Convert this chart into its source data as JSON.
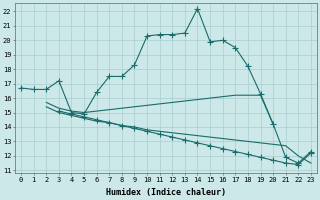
{
  "xlabel": "Humidex (Indice chaleur)",
  "xlim": [
    -0.5,
    23.5
  ],
  "ylim": [
    10.8,
    22.6
  ],
  "yticks": [
    11,
    12,
    13,
    14,
    15,
    16,
    17,
    18,
    19,
    20,
    21,
    22
  ],
  "xticks": [
    0,
    1,
    2,
    3,
    4,
    5,
    6,
    7,
    8,
    9,
    10,
    11,
    12,
    13,
    14,
    15,
    16,
    17,
    18,
    19,
    20,
    21,
    22,
    23
  ],
  "bg_color": "#cce8e8",
  "line_color": "#1a6b6b",
  "grid_color": "#aacece",
  "line1_x": [
    0,
    1,
    2,
    3,
    4,
    5,
    6,
    7,
    8,
    9,
    10,
    11,
    12,
    13,
    14,
    15,
    16,
    17,
    18,
    19,
    20,
    21,
    22,
    23
  ],
  "line1_y": [
    16.7,
    16.6,
    16.6,
    17.2,
    15.0,
    14.9,
    16.4,
    17.5,
    17.5,
    18.3,
    20.3,
    20.4,
    20.4,
    20.5,
    22.2,
    19.9,
    20.0,
    19.5,
    18.2,
    16.3,
    14.2,
    11.9,
    11.5,
    12.3
  ],
  "line2_x": [
    2,
    3,
    4,
    5,
    6,
    7,
    8,
    9,
    10,
    11,
    12,
    13,
    14,
    15,
    16,
    17,
    18,
    19,
    20
  ],
  "line2_y": [
    15.7,
    15.3,
    15.1,
    15.0,
    15.1,
    15.2,
    15.3,
    15.4,
    15.5,
    15.6,
    15.7,
    15.8,
    15.9,
    16.0,
    16.1,
    16.2,
    16.2,
    16.2,
    14.2
  ],
  "line3_x": [
    2,
    3,
    4,
    5,
    6,
    7,
    8,
    9,
    10,
    11,
    12,
    13,
    14,
    15,
    16,
    17,
    18,
    19,
    20,
    21,
    22,
    23
  ],
  "line3_y": [
    15.4,
    15.0,
    14.8,
    14.6,
    14.4,
    14.3,
    14.1,
    14.0,
    13.8,
    13.7,
    13.6,
    13.5,
    13.4,
    13.3,
    13.2,
    13.1,
    13.0,
    12.9,
    12.8,
    12.7,
    12.0,
    11.5
  ],
  "line4_x": [
    3,
    4,
    5,
    6,
    7,
    8,
    9,
    10,
    11,
    12,
    13,
    14,
    15,
    16,
    17,
    18,
    19,
    20,
    21,
    22,
    23
  ],
  "line4_y": [
    15.1,
    14.9,
    14.7,
    14.5,
    14.3,
    14.1,
    13.9,
    13.7,
    13.5,
    13.3,
    13.1,
    12.9,
    12.7,
    12.5,
    12.3,
    12.1,
    11.9,
    11.7,
    11.5,
    11.4,
    12.2
  ]
}
